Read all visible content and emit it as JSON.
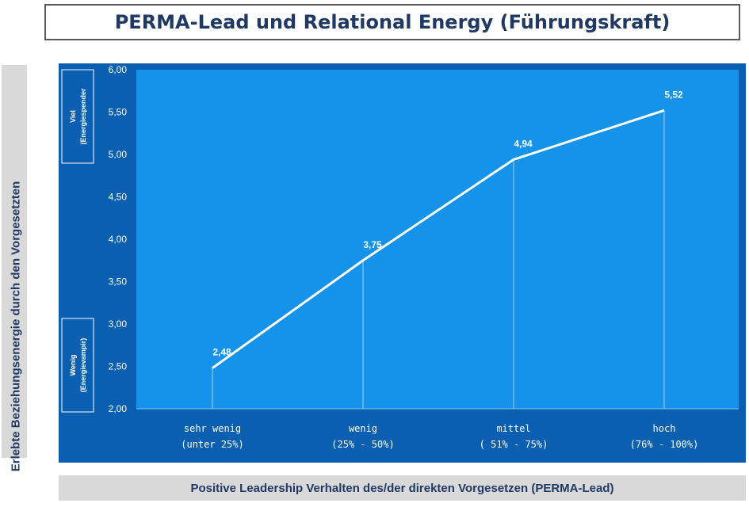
{
  "title": "PERMA-Lead und Relational Energy (Führungskraft)",
  "chart_data": {
    "type": "line",
    "categories": [
      [
        "sehr wenig",
        "(unter 25%)"
      ],
      [
        "wenig",
        "(25% - 50%)"
      ],
      [
        "mittel",
        "( 51% - 75%)"
      ],
      [
        "hoch",
        "(76% - 100%)"
      ]
    ],
    "values": [
      2.48,
      3.75,
      4.94,
      5.52
    ],
    "value_labels": [
      "2,48",
      "3,75",
      "4,94",
      "5,52"
    ],
    "ylim": [
      2.0,
      6.0
    ],
    "yticks": [
      "2,00",
      "2,50",
      "3,00",
      "3,50",
      "4,00",
      "4,50",
      "5,00",
      "5,50",
      "6,00"
    ],
    "ylabel": "Erlebte Beziehungsenergie durch den Vorgesetzten",
    "xlabel": "Positive Leadership Verhalten des/der direkten Vorgesetzen (PERMA-Lead)",
    "bands": {
      "high": [
        "Viel",
        "(Energiespender"
      ],
      "low": [
        "Wenig",
        "(Energievampir)"
      ]
    },
    "grid": false,
    "colors": {
      "frame": "#0a5fb0",
      "plot": "#1592ea",
      "line": "#ffffff",
      "title": "#1f3864"
    }
  }
}
